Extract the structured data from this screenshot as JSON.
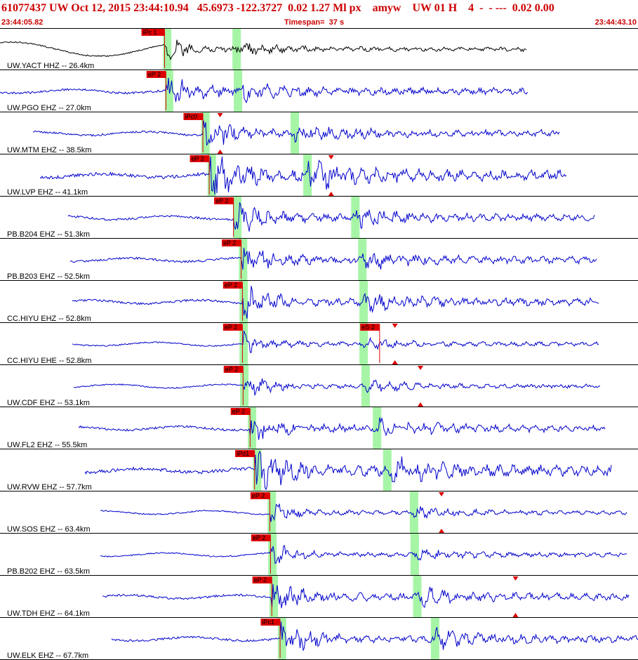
{
  "header": {
    "title": "61077437 UW Oct 12, 2015 23:44:10.94   45.6973 -122.3727  0.02 1.27 Ml px    amyw    UW 01 H    4  -  - ---  0.02 0.00",
    "start_time": "23:44:05.82",
    "timespan": "Timespan=  37 s",
    "end_time": "23:44:43.10"
  },
  "colors": {
    "trace_first": "#000000",
    "trace": "#0000cc",
    "pick": "#dd0000",
    "window": "#a6f5a6",
    "label": "#000000",
    "separator": "#000000"
  },
  "chart_data": {
    "type": "line",
    "title": "61077437 UW Oct 12, 2015 23:44:10.94",
    "x_range": [
      "23:44:05.82",
      "23:44:43.10"
    ],
    "timespan_s": 37,
    "series": [
      {
        "name": "UW.YACT HHZ -- 26.4km",
        "seg": [
          0,
          750
        ],
        "amp": "low",
        "picks": [
          {
            "label": "iPc 1",
            "t": 0.258
          }
        ],
        "windows": [
          0.262,
          0.371
        ],
        "markers": []
      },
      {
        "name": "UW.PGO EHZ -- 27.0km",
        "seg": [
          0,
          752
        ],
        "amp": "med",
        "picks": [
          {
            "label": "eP 2",
            "t": 0.26
          }
        ],
        "windows": [
          0.265,
          0.373
        ],
        "markers": []
      },
      {
        "name": "UW.MTM EHZ -- 38.5km",
        "seg": [
          47,
          797
        ],
        "amp": "med",
        "picks": [
          {
            "label": "iPc0",
            "t": 0.318
          }
        ],
        "windows": [
          0.322,
          0.462
        ],
        "markers": [
          0.345
        ]
      },
      {
        "name": "UW.LVP EHZ -- 41.1km",
        "seg": [
          57,
          807
        ],
        "amp": "high",
        "picks": [
          {
            "label": "eP 2",
            "t": 0.328
          }
        ],
        "windows": [
          0.332,
          0.482
        ],
        "markers": [
          0.519
        ]
      },
      {
        "name": "PB.B204 EHZ -- 51.3km",
        "seg": [
          97,
          847
        ],
        "amp": "med",
        "picks": [
          {
            "label": "eP 2",
            "t": 0.366
          }
        ],
        "windows": [
          0.372,
          0.557
        ],
        "markers": []
      },
      {
        "name": "PB.B203 EHZ -- 52.5km",
        "seg": [
          100,
          850
        ],
        "amp": "med",
        "picks": [
          {
            "label": "eP 2",
            "t": 0.378
          }
        ],
        "windows": [
          0.381,
          0.568
        ],
        "markers": []
      },
      {
        "name": "CC.HIYU EHZ -- 52.8km",
        "seg": [
          103,
          853
        ],
        "amp": "med",
        "picks": [
          {
            "label": "eP 2",
            "t": 0.38
          }
        ],
        "windows": [
          0.382,
          0.57
        ],
        "markers": []
      },
      {
        "name": "CC.HIYU EHE -- 52.8km",
        "seg": [
          103,
          853
        ],
        "amp": "low",
        "picks": [
          {
            "label": "eP 2",
            "t": 0.38
          },
          {
            "label": "eS 2",
            "t": 0.595
          }
        ],
        "windows": [
          0.382,
          0.57
        ],
        "markers": [
          0.619
        ]
      },
      {
        "name": "UW.CDF EHZ -- 53.1km",
        "seg": [
          105,
          855
        ],
        "amp": "low",
        "picks": [
          {
            "label": "eP 2",
            "t": 0.381
          }
        ],
        "windows": [
          0.383,
          0.573
        ],
        "markers": [
          0.659
        ]
      },
      {
        "name": "UW.FL2 EHZ -- 55.5km",
        "seg": [
          112,
          862
        ],
        "amp": "med",
        "picks": [
          {
            "label": "eP 2",
            "t": 0.392
          }
        ],
        "windows": [
          0.395,
          0.591
        ],
        "markers": []
      },
      {
        "name": "UW.RVW EHZ -- 57.7km",
        "seg": [
          121,
          871
        ],
        "amp": "high",
        "picks": [
          {
            "label": "iPd1",
            "t": 0.399
          }
        ],
        "windows": [
          0.403,
          0.607
        ],
        "markers": []
      },
      {
        "name": "UW.SOS EHZ -- 63.4km",
        "seg": [
          143,
          893
        ],
        "amp": "low",
        "picks": [
          {
            "label": "eP 2",
            "t": 0.423
          }
        ],
        "windows": [
          0.426,
          0.649
        ],
        "markers": [
          0.692
        ]
      },
      {
        "name": "PB.B202 EHZ -- 63.5km",
        "seg": [
          143,
          893
        ],
        "amp": "low",
        "picks": [
          {
            "label": "eP 2",
            "t": 0.424
          }
        ],
        "windows": [
          0.427,
          0.65
        ],
        "markers": []
      },
      {
        "name": "UW.TDH EHZ -- 64.1km",
        "seg": [
          146,
          896
        ],
        "amp": "med",
        "picks": [
          {
            "label": "eP 2",
            "t": 0.426
          }
        ],
        "windows": [
          0.429,
          0.654
        ],
        "markers": [
          0.808
        ]
      },
      {
        "name": "UW.ELK EHZ -- 67.7km",
        "seg": [
          159,
          909
        ],
        "amp": "med",
        "picks": [
          {
            "label": "iPc1",
            "t": 0.439
          }
        ],
        "windows": [
          0.442,
          0.682
        ],
        "markers": []
      }
    ]
  }
}
